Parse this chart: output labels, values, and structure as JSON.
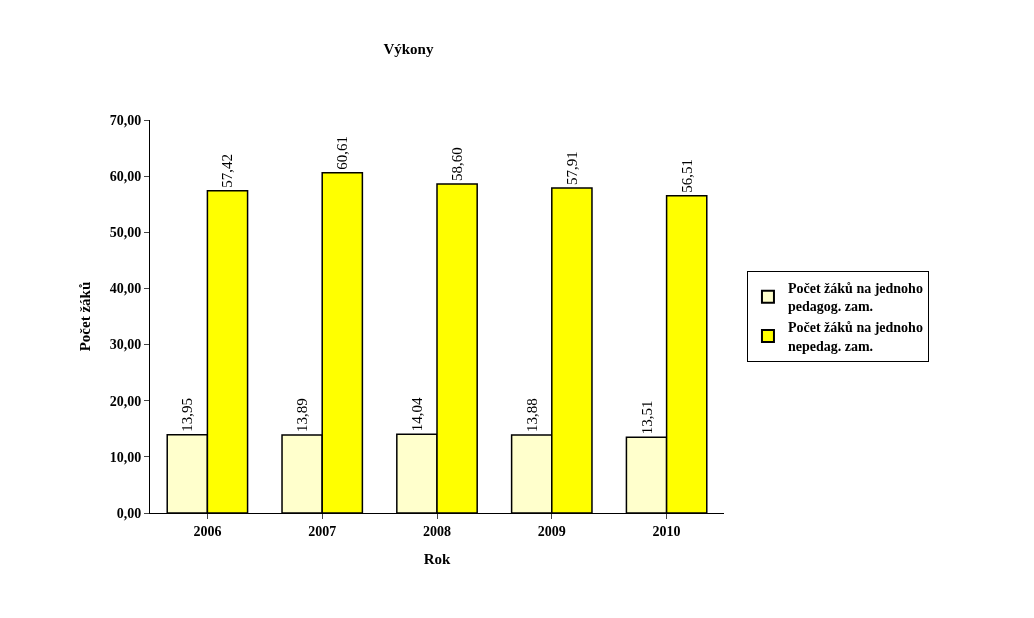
{
  "chart_data": {
    "type": "bar",
    "title": "Výkony",
    "xlabel": "Rok",
    "ylabel": "Počet žáků",
    "categories": [
      "2006",
      "2007",
      "2008",
      "2009",
      "2010"
    ],
    "series": [
      {
        "name": "Počet žáků na jednoho pedagog. zam.",
        "color": "#ffffcc",
        "values": [
          13.95,
          13.89,
          14.04,
          13.88,
          13.51
        ],
        "value_labels": [
          "13,95",
          "13,89",
          "14,04",
          "13,88",
          "13,51"
        ]
      },
      {
        "name": "Počet žáků na jednoho nepedag. zam.",
        "color": "#ffff00",
        "values": [
          57.42,
          60.61,
          58.6,
          57.91,
          56.51
        ],
        "value_labels": [
          "57,42",
          "60,61",
          "58,60",
          "57,91",
          "56,51"
        ]
      }
    ],
    "ylim": [
      0,
      70
    ],
    "yticks": [
      {
        "value": 0,
        "label": "0,00"
      },
      {
        "value": 10,
        "label": "10,00"
      },
      {
        "value": 20,
        "label": "20,00"
      },
      {
        "value": 30,
        "label": "30,00"
      },
      {
        "value": 40,
        "label": "40,00"
      },
      {
        "value": 50,
        "label": "50,00"
      },
      {
        "value": 60,
        "label": "60,00"
      },
      {
        "value": 70,
        "label": "70,00"
      }
    ],
    "legend": "right"
  }
}
